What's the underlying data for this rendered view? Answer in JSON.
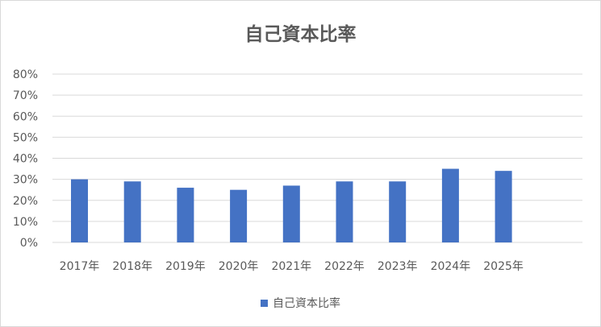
{
  "chart_data": {
    "type": "bar",
    "title": "自己資本比率",
    "categories": [
      "2017年",
      "2018年",
      "2019年",
      "2020年",
      "2021年",
      "2022年",
      "2023年",
      "2024年",
      "2025年"
    ],
    "series": [
      {
        "name": "自己資本比率",
        "values": [
          0.3,
          0.29,
          0.26,
          0.25,
          0.27,
          0.29,
          0.29,
          0.35,
          0.34
        ]
      }
    ],
    "ylim": [
      0,
      0.8
    ],
    "yticks": [
      "0%",
      "10%",
      "20%",
      "30%",
      "40%",
      "50%",
      "60%",
      "70%",
      "80%"
    ],
    "grid": true,
    "legend_position": "bottom",
    "bar_color": "#4472C4",
    "grid_color": "#d9d9d9",
    "text_color": "#595959"
  }
}
